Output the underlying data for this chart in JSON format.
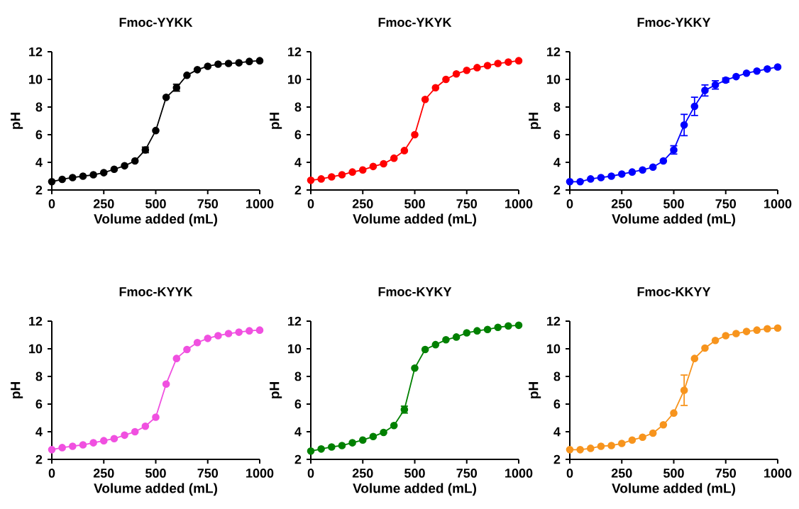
{
  "chart_data": [
    {
      "type": "line",
      "title": "Fmoc-YYKK",
      "xlabel": "Volume added (mL)",
      "ylabel": "pH",
      "color": "#000000",
      "marker": "circle",
      "xlim": [
        0,
        1000
      ],
      "ylim": [
        2,
        12
      ],
      "xticks": [
        0,
        250,
        500,
        750,
        1000
      ],
      "yticks": [
        2,
        4,
        6,
        8,
        10,
        12
      ],
      "x": [
        0,
        50,
        100,
        150,
        200,
        250,
        300,
        350,
        400,
        450,
        500,
        550,
        600,
        650,
        700,
        750,
        800,
        850,
        900,
        950,
        1000
      ],
      "values": [
        2.6,
        2.77,
        2.9,
        3.0,
        3.1,
        3.25,
        3.5,
        3.75,
        4.1,
        4.9,
        6.3,
        8.7,
        9.4,
        10.3,
        10.7,
        10.95,
        11.1,
        11.15,
        11.2,
        11.3,
        11.35
      ],
      "errors": [
        null,
        null,
        null,
        null,
        null,
        null,
        null,
        null,
        null,
        0.2,
        null,
        null,
        0.25,
        null,
        null,
        null,
        null,
        null,
        null,
        null,
        null
      ]
    },
    {
      "type": "line",
      "title": "Fmoc-YKYK",
      "xlabel": "Volume added (mL)",
      "ylabel": "pH",
      "color": "#ff0000",
      "marker": "circle",
      "xlim": [
        0,
        1000
      ],
      "ylim": [
        2,
        12
      ],
      "xticks": [
        0,
        250,
        500,
        750,
        1000
      ],
      "yticks": [
        2,
        4,
        6,
        8,
        10,
        12
      ],
      "x": [
        0,
        50,
        100,
        150,
        200,
        250,
        300,
        350,
        400,
        450,
        500,
        550,
        600,
        650,
        700,
        750,
        800,
        850,
        900,
        950,
        1000
      ],
      "values": [
        2.7,
        2.8,
        2.95,
        3.1,
        3.3,
        3.45,
        3.7,
        3.9,
        4.3,
        4.85,
        6.0,
        8.55,
        9.4,
        10.0,
        10.4,
        10.65,
        10.85,
        11.0,
        11.15,
        11.25,
        11.35
      ]
    },
    {
      "type": "line",
      "title": "Fmoc-YKKY",
      "xlabel": "Volume added (mL)",
      "ylabel": "pH",
      "color": "#0000ff",
      "marker": "circle",
      "xlim": [
        0,
        1000
      ],
      "ylim": [
        2,
        12
      ],
      "xticks": [
        0,
        250,
        500,
        750,
        1000
      ],
      "yticks": [
        2,
        4,
        6,
        8,
        10,
        12
      ],
      "x": [
        0,
        50,
        100,
        150,
        200,
        250,
        300,
        350,
        400,
        450,
        500,
        550,
        600,
        650,
        700,
        750,
        800,
        850,
        900,
        950,
        1000
      ],
      "values": [
        2.6,
        2.6,
        2.8,
        2.9,
        3.0,
        3.15,
        3.3,
        3.45,
        3.65,
        4.1,
        4.9,
        6.7,
        8.05,
        9.2,
        9.6,
        9.95,
        10.2,
        10.45,
        10.6,
        10.75,
        10.9
      ],
      "errors": [
        null,
        null,
        null,
        null,
        null,
        null,
        null,
        null,
        null,
        null,
        0.3,
        0.77,
        0.66,
        0.4,
        0.3,
        0.15,
        null,
        null,
        null,
        null,
        null
      ]
    },
    {
      "type": "line",
      "title": "Fmoc-KYYK",
      "xlabel": "Volume added (mL)",
      "ylabel": "pH",
      "color": "#f050e0",
      "marker": "circle",
      "xlim": [
        0,
        1000
      ],
      "ylim": [
        2,
        12
      ],
      "xticks": [
        0,
        250,
        500,
        750,
        1000
      ],
      "yticks": [
        2,
        4,
        6,
        8,
        10,
        12
      ],
      "x": [
        0,
        50,
        100,
        150,
        200,
        250,
        300,
        350,
        400,
        450,
        500,
        550,
        600,
        650,
        700,
        750,
        800,
        850,
        900,
        950,
        1000
      ],
      "values": [
        2.7,
        2.85,
        2.95,
        3.05,
        3.2,
        3.35,
        3.5,
        3.75,
        4.0,
        4.4,
        5.05,
        7.45,
        9.3,
        9.95,
        10.45,
        10.75,
        10.95,
        11.1,
        11.2,
        11.3,
        11.35
      ]
    },
    {
      "type": "line",
      "title": "Fmoc-KYKY",
      "xlabel": "Volume added (mL)",
      "ylabel": "pH",
      "color": "#008000",
      "marker": "circle",
      "xlim": [
        0,
        1000
      ],
      "ylim": [
        2,
        12
      ],
      "xticks": [
        0,
        250,
        500,
        750,
        1000
      ],
      "yticks": [
        2,
        4,
        6,
        8,
        10,
        12
      ],
      "x": [
        0,
        50,
        100,
        150,
        200,
        250,
        300,
        350,
        400,
        450,
        500,
        550,
        600,
        650,
        700,
        750,
        800,
        850,
        900,
        950,
        1000
      ],
      "values": [
        2.6,
        2.75,
        2.9,
        3.0,
        3.2,
        3.4,
        3.65,
        3.95,
        4.45,
        5.6,
        8.6,
        9.95,
        10.3,
        10.65,
        10.85,
        11.15,
        11.3,
        11.4,
        11.55,
        11.65,
        11.7
      ],
      "errors": [
        null,
        null,
        null,
        null,
        null,
        null,
        null,
        null,
        null,
        0.25,
        null,
        null,
        null,
        null,
        null,
        null,
        null,
        null,
        null,
        null,
        null
      ]
    },
    {
      "type": "line",
      "title": "Fmoc-KKYY",
      "xlabel": "Volume added (mL)",
      "ylabel": "pH",
      "color": "#f7941d",
      "marker": "circle",
      "xlim": [
        0,
        1000
      ],
      "ylim": [
        2,
        12
      ],
      "xticks": [
        0,
        250,
        500,
        750,
        1000
      ],
      "yticks": [
        2,
        4,
        6,
        8,
        10,
        12
      ],
      "x": [
        0,
        50,
        100,
        150,
        200,
        250,
        300,
        350,
        400,
        450,
        500,
        550,
        600,
        650,
        700,
        750,
        800,
        850,
        900,
        950,
        1000
      ],
      "values": [
        2.7,
        2.7,
        2.8,
        2.95,
        3.0,
        3.15,
        3.4,
        3.6,
        3.9,
        4.5,
        5.35,
        7.0,
        9.3,
        10.05,
        10.6,
        10.95,
        11.1,
        11.25,
        11.35,
        11.45,
        11.5
      ],
      "errors": [
        null,
        null,
        null,
        null,
        null,
        null,
        null,
        null,
        null,
        null,
        null,
        1.1,
        null,
        null,
        null,
        null,
        null,
        null,
        null,
        null,
        null
      ]
    }
  ]
}
